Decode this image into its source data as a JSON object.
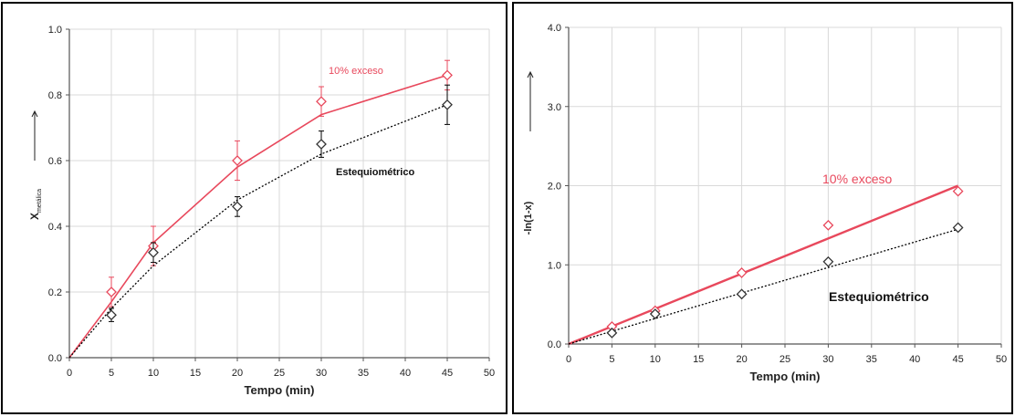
{
  "chart_data": [
    {
      "type": "line",
      "title": "",
      "xlabel": "Tempo (min)",
      "ylabel": "X",
      "ylabel_subscript": "metálica",
      "xlim": [
        0,
        50
      ],
      "ylim": [
        0,
        1.0
      ],
      "xticks": [
        "0",
        "5",
        "10",
        "15",
        "20",
        "25",
        "30",
        "35",
        "40",
        "45",
        "50"
      ],
      "yticks": [
        "0.0",
        "0.2",
        "0.4",
        "0.6",
        "0.8",
        "1.0"
      ],
      "grid": true,
      "series": [
        {
          "name": "10% exceso",
          "color": "#e8485c",
          "style": "solid",
          "line": [
            [
              0,
              0
            ],
            [
              5,
              0.17
            ],
            [
              10,
              0.35
            ],
            [
              20,
              0.58
            ],
            [
              30,
              0.74
            ],
            [
              45,
              0.86
            ]
          ],
          "points": [
            [
              5,
              0.2
            ],
            [
              10,
              0.34
            ],
            [
              20,
              0.6
            ],
            [
              30,
              0.78
            ],
            [
              45,
              0.86
            ]
          ],
          "errors": [
            0.045,
            0.06,
            0.06,
            0.045,
            0.045
          ]
        },
        {
          "name": "Estequiométrico",
          "color": "#000000",
          "style": "dotted",
          "line": [
            [
              0,
              0
            ],
            [
              5,
              0.15
            ],
            [
              10,
              0.28
            ],
            [
              20,
              0.48
            ],
            [
              30,
              0.62
            ],
            [
              45,
              0.77
            ]
          ],
          "points": [
            [
              5,
              0.13
            ],
            [
              10,
              0.32
            ],
            [
              20,
              0.46
            ],
            [
              30,
              0.65
            ],
            [
              45,
              0.77
            ]
          ],
          "errors": [
            0.02,
            0.03,
            0.03,
            0.04,
            0.06
          ]
        }
      ]
    },
    {
      "type": "line",
      "title": "",
      "xlabel": "Tempo (min)",
      "ylabel": "-ln(1-x)",
      "xlim": [
        0,
        50
      ],
      "ylim": [
        0,
        4.0
      ],
      "xticks": [
        "0",
        "5",
        "10",
        "15",
        "20",
        "25",
        "30",
        "35",
        "40",
        "45",
        "50"
      ],
      "yticks": [
        "0.0",
        "1.0",
        "2.0",
        "3.0",
        "4.0"
      ],
      "grid": true,
      "series": [
        {
          "name": "10% exceso",
          "color": "#e8485c",
          "style": "solid",
          "line": [
            [
              0,
              0
            ],
            [
              45,
              2.0
            ]
          ],
          "points": [
            [
              5,
              0.22
            ],
            [
              10,
              0.42
            ],
            [
              20,
              0.9
            ],
            [
              30,
              1.5
            ],
            [
              45,
              1.93
            ]
          ]
        },
        {
          "name": "Estequiométrico",
          "color": "#000000",
          "style": "dotted",
          "line": [
            [
              0,
              0
            ],
            [
              45,
              1.45
            ]
          ],
          "points": [
            [
              5,
              0.14
            ],
            [
              10,
              0.38
            ],
            [
              20,
              0.63
            ],
            [
              30,
              1.04
            ],
            [
              45,
              1.47
            ]
          ]
        }
      ]
    }
  ]
}
